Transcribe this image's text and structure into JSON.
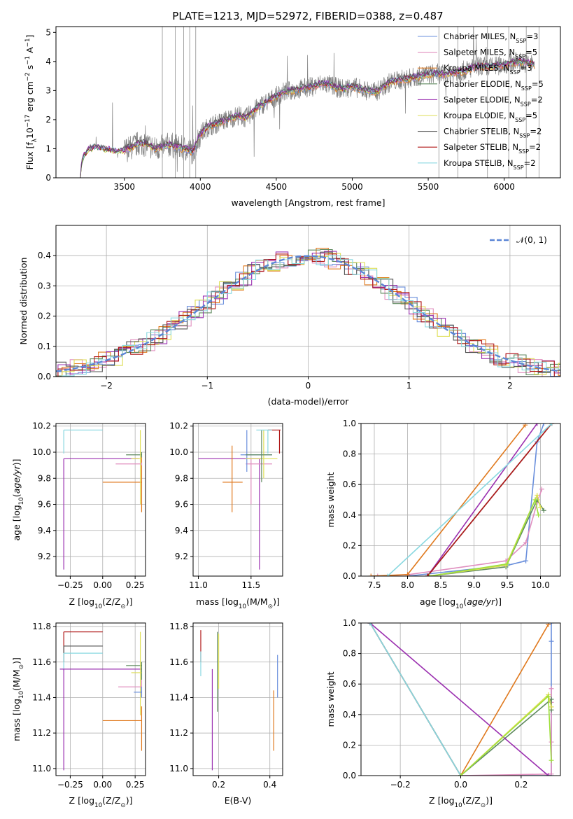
{
  "title": "PLATE=1213, MJD=52972, FIBERID=0388, z=0.487",
  "colors": {
    "Chabrier MILES": "#6a8fdc",
    "Salpeter MILES": "#e08fbf",
    "Kroupa MILES": "#e07a1f",
    "Chabrier ELODIE": "#5f8a5f",
    "Salpeter ELODIE": "#9b30b0",
    "Kroupa ELODIE": "#dede55",
    "Chabrier STELIB": "#555555",
    "Salpeter STELIB": "#b01818",
    "Kroupa STELIB": "#88d8e0",
    "data": "#808080",
    "lime": "#9fe03a"
  },
  "chart_data": [
    {
      "id": "spectrum",
      "type": "line",
      "xlabel": "wavelength [Angstrom, rest frame]",
      "ylabel_main": "Flux [f",
      "ylabel_sub": "λ",
      "ylabel_rest": "10",
      "ylabel_exp1": "−17",
      "ylabel_mid": " erg cm",
      "ylabel_exp2": "−2",
      "ylabel_mid2": " s",
      "ylabel_exp3": "−1",
      "ylabel_end": " A",
      "ylabel_exp4": "−1",
      "ylabel_close": "]",
      "xlim": [
        3050,
        6370
      ],
      "ylim": [
        0,
        5.2
      ],
      "xticks": [
        "3500",
        "4000",
        "4500",
        "5000",
        "5500",
        "6000"
      ],
      "yticks": [
        "0",
        "1",
        "2",
        "3",
        "4",
        "5"
      ],
      "legend_placement": "top-right",
      "legend": [
        {
          "label": "Chabrier MILES, N",
          "sub": "SSP",
          "tail": "=3",
          "key": "Chabrier MILES"
        },
        {
          "label": "Salpeter MILES, N",
          "sub": "SSP",
          "tail": "=5",
          "key": "Salpeter MILES"
        },
        {
          "label": "Kroupa MILES, N",
          "sub": "SSP",
          "tail": "=3",
          "key": "Kroupa MILES"
        },
        {
          "label": "Chabrier ELODIE, N",
          "sub": "SSP",
          "tail": "=5",
          "key": "Chabrier ELODIE"
        },
        {
          "label": "Salpeter ELODIE, N",
          "sub": "SSP",
          "tail": "=2",
          "key": "Salpeter ELODIE"
        },
        {
          "label": "Kroupa ELODIE, N",
          "sub": "SSP",
          "tail": "=5",
          "key": "Kroupa ELODIE"
        },
        {
          "label": "Chabrier STELIB, N",
          "sub": "SSP",
          "tail": "=2",
          "key": "Chabrier STELIB"
        },
        {
          "label": "Salpeter STELIB, N",
          "sub": "SSP",
          "tail": "=2",
          "key": "Salpeter STELIB"
        },
        {
          "label": "Kroupa STELIB, N",
          "sub": "SSP",
          "tail": "=2",
          "key": "Kroupa STELIB"
        }
      ],
      "continuum": [
        [
          3210,
          0
        ],
        [
          3220,
          0.55
        ],
        [
          3230,
          0.7
        ],
        [
          3260,
          0.95
        ],
        [
          3300,
          1.05
        ],
        [
          3350,
          1.0
        ],
        [
          3400,
          0.95
        ],
        [
          3450,
          0.9
        ],
        [
          3500,
          0.95
        ],
        [
          3550,
          1.05
        ],
        [
          3600,
          1.2
        ],
        [
          3650,
          1.15
        ],
        [
          3700,
          1.0
        ],
        [
          3750,
          1.05
        ],
        [
          3800,
          1.15
        ],
        [
          3850,
          1.05
        ],
        [
          3900,
          1.0
        ],
        [
          3950,
          0.9
        ],
        [
          4000,
          1.5
        ],
        [
          4050,
          1.75
        ],
        [
          4100,
          1.85
        ],
        [
          4150,
          1.95
        ],
        [
          4200,
          2.05
        ],
        [
          4250,
          2.15
        ],
        [
          4300,
          2.05
        ],
        [
          4350,
          2.3
        ],
        [
          4400,
          2.5
        ],
        [
          4450,
          2.65
        ],
        [
          4500,
          2.8
        ],
        [
          4550,
          2.95
        ],
        [
          4600,
          3.0
        ],
        [
          4650,
          3.05
        ],
        [
          4700,
          3.1
        ],
        [
          4750,
          3.15
        ],
        [
          4800,
          3.25
        ],
        [
          4850,
          3.2
        ],
        [
          4900,
          3.1
        ],
        [
          4950,
          3.05
        ],
        [
          5000,
          3.15
        ],
        [
          5050,
          3.05
        ],
        [
          5100,
          3.0
        ],
        [
          5150,
          2.95
        ],
        [
          5200,
          3.1
        ],
        [
          5250,
          3.3
        ],
        [
          5300,
          3.35
        ],
        [
          5350,
          3.4
        ],
        [
          5400,
          3.45
        ],
        [
          5450,
          3.5
        ],
        [
          5500,
          3.55
        ],
        [
          5550,
          3.6
        ],
        [
          5600,
          3.55
        ],
        [
          5650,
          3.6
        ],
        [
          5700,
          3.65
        ],
        [
          5750,
          3.7
        ],
        [
          5800,
          3.8
        ],
        [
          5850,
          3.85
        ],
        [
          5900,
          3.8
        ],
        [
          5950,
          3.85
        ],
        [
          6000,
          3.9
        ],
        [
          6050,
          3.95
        ],
        [
          6100,
          4.0
        ],
        [
          6150,
          3.95
        ],
        [
          6200,
          3.9
        ]
      ]
    },
    {
      "id": "histogram",
      "type": "bar",
      "xlabel": "(data-model)/error",
      "ylabel": "Normed distribution",
      "xlim": [
        -2.5,
        2.5
      ],
      "ylim": [
        0,
        0.5
      ],
      "xticks": [
        "−2",
        "−1",
        "0",
        "1",
        "2"
      ],
      "yticks": [
        "0.0",
        "0.1",
        "0.2",
        "0.3",
        "0.4"
      ],
      "legend_placement": "top-right",
      "legend_label": "𝒩(0, 1)",
      "normal_color": "#5b86d6"
    },
    {
      "id": "age_vs_Z",
      "type": "scatter",
      "xlabel": "Z [log",
      "xlabel_sub": "10",
      "xlabel_rest": "(Z/Z",
      "xlabel_sun": "⊙",
      "xlabel_close": ")]",
      "ylabel": "age  [log",
      "ylabel_sub": "10",
      "ylabel_rest": "(age/yr)]",
      "xlim": [
        -0.36,
        0.33
      ],
      "ylim": [
        9.05,
        10.22
      ],
      "xticks": [
        "−0.25",
        "0.00",
        "0.25"
      ],
      "yticks": [
        "9.2",
        "9.4",
        "9.6",
        "9.8",
        "10.0",
        "10.2"
      ]
    },
    {
      "id": "age_vs_mass",
      "type": "scatter",
      "xlabel": "mass [log",
      "xlabel_sub": "10",
      "xlabel_rest": "(M/M",
      "xlabel_sun": "⊙",
      "xlabel_close": ")]",
      "xlim": [
        10.95,
        11.8
      ],
      "ylim": [
        9.05,
        10.22
      ],
      "xticks": [
        "11.0",
        "11.5"
      ],
      "yticks": [
        "9.2",
        "9.4",
        "9.6",
        "9.8",
        "10.0",
        "10.2"
      ]
    },
    {
      "id": "massweight_vs_age",
      "type": "line",
      "xlabel": "age  [log",
      "xlabel_sub": "10",
      "xlabel_rest": "(age/yr)]",
      "ylabel": "mass weight",
      "xlim": [
        7.3,
        10.3
      ],
      "ylim": [
        0,
        1
      ],
      "xticks": [
        "7.5",
        "8.0",
        "8.5",
        "9.0",
        "9.5",
        "10.0"
      ],
      "yticks": [
        "0.0",
        "0.2",
        "0.4",
        "0.6",
        "0.8",
        "1.0"
      ]
    },
    {
      "id": "mass_vs_Z",
      "type": "scatter",
      "xlabel": "Z [log",
      "xlabel_sub": "10",
      "xlabel_rest": "(Z/Z",
      "xlabel_sun": "⊙",
      "xlabel_close": ")]",
      "ylabel": "mass [log",
      "ylabel_sub": "10",
      "ylabel_rest": "(M/M",
      "ylabel_sun": "⊙",
      "ylabel_close": ")]",
      "xlim": [
        -0.36,
        0.33
      ],
      "ylim": [
        10.96,
        11.82
      ],
      "xticks": [
        "−0.25",
        "0.00",
        "0.25"
      ],
      "yticks": [
        "11.0",
        "11.2",
        "11.4",
        "11.6",
        "11.8"
      ]
    },
    {
      "id": "mass_vs_EBV",
      "type": "scatter",
      "xlabel": "E(B-V)",
      "xlim": [
        0.1,
        0.45
      ],
      "ylim": [
        10.96,
        11.82
      ],
      "xticks": [
        "0.2",
        "0.4"
      ],
      "yticks": [
        "11.0",
        "11.2",
        "11.4",
        "11.6",
        "11.8"
      ]
    },
    {
      "id": "massweight_vs_Z",
      "type": "line",
      "xlabel": "Z [log",
      "xlabel_sub": "10",
      "xlabel_rest": "(Z/Z",
      "xlabel_sun": "⊙",
      "xlabel_close": ")]",
      "ylabel": "mass weight",
      "xlim": [
        -0.33,
        0.33
      ],
      "ylim": [
        0,
        1
      ],
      "xticks": [
        "−0.2",
        "0.0",
        "0.2"
      ],
      "yticks": [
        "0.0",
        "0.2",
        "0.4",
        "0.6",
        "0.8",
        "1.0"
      ]
    }
  ],
  "bars_age_Z": [
    {
      "key": "Kroupa STELIB",
      "x0": -0.3,
      "x1": 0.0,
      "y": 10.17,
      "ylo": 9.99,
      "yhi": 10.17,
      "vx": -0.3
    },
    {
      "key": "Salpeter ELODIE",
      "x0": -0.3,
      "x1": 0.28,
      "y": 9.95,
      "ylo": 9.1,
      "yhi": 9.95,
      "vx": -0.3
    },
    {
      "key": "Kroupa MILES",
      "x0": 0.0,
      "x1": 0.3,
      "y": 9.77,
      "ylo": 9.54,
      "yhi": 9.97,
      "vx": 0.3
    },
    {
      "key": "Chabrier ELODIE",
      "x0": 0.18,
      "x1": 0.3,
      "y": 9.98,
      "ylo": 9.96,
      "yhi": 10.0,
      "vx": 0.3
    },
    {
      "key": "Salpeter MILES",
      "x0": 0.1,
      "x1": 0.3,
      "y": 9.91,
      "ylo": 9.9,
      "yhi": 9.92,
      "vx": 0.3
    },
    {
      "key": "Kroupa ELODIE",
      "x0": 0.22,
      "x1": 0.3,
      "y": 9.95,
      "ylo": 9.6,
      "yhi": 10.17,
      "vx": 0.29
    }
  ],
  "bars_age_mass": [
    {
      "key": "Salpeter ELODIE",
      "x0": 11.0,
      "x1": 11.6,
      "y": 9.95,
      "vx": 11.58,
      "ylo": 9.1,
      "yhi": 9.95
    },
    {
      "key": "Kroupa MILES",
      "x0": 11.23,
      "x1": 11.42,
      "y": 9.77,
      "vx": 11.32,
      "ylo": 9.54,
      "yhi": 10.05
    },
    {
      "key": "Salpeter MILES",
      "x0": 11.45,
      "x1": 11.7,
      "y": 9.91,
      "vx": 11.5,
      "ylo": 9.6,
      "yhi": 9.95
    },
    {
      "key": "Chabrier MILES",
      "x0": 11.4,
      "x1": 11.7,
      "y": 9.98,
      "vx": 11.46,
      "ylo": 9.85,
      "yhi": 10.17
    },
    {
      "key": "Kroupa ELODIE",
      "x0": 11.45,
      "x1": 11.75,
      "y": 9.95,
      "vx": 11.62,
      "ylo": 9.8,
      "yhi": 10.17
    },
    {
      "key": "Chabrier ELODIE",
      "x0": 11.45,
      "x1": 11.7,
      "y": 9.98,
      "vx": 11.6,
      "ylo": 9.77,
      "yhi": 10.17
    },
    {
      "key": "Salpeter STELIB",
      "x0": 11.66,
      "x1": 11.78,
      "y": 10.17,
      "vx": 11.77,
      "ylo": 9.99,
      "yhi": 10.17
    },
    {
      "key": "Kroupa STELIB",
      "x0": 11.55,
      "x1": 11.7,
      "y": 10.17,
      "vx": 11.66,
      "ylo": 9.99,
      "yhi": 10.17
    }
  ],
  "bars_mass_Z": [
    {
      "key": "Salpeter STELIB",
      "x0": -0.3,
      "x1": 0.0,
      "y": 11.77,
      "vx": -0.3,
      "ylo": 11.6,
      "yhi": 11.77
    },
    {
      "key": "Chabrier STELIB",
      "x0": -0.3,
      "x1": 0.0,
      "y": 11.69,
      "vx": -0.3,
      "ylo": 11.6,
      "yhi": 11.69
    },
    {
      "key": "Kroupa STELIB",
      "x0": -0.3,
      "x1": 0.0,
      "y": 11.65,
      "vx": -0.3,
      "ylo": 11.55,
      "yhi": 11.65
    },
    {
      "key": "Salpeter ELODIE",
      "x0": -0.33,
      "x1": 0.3,
      "y": 11.56,
      "vx": -0.3,
      "ylo": 10.99,
      "yhi": 11.56
    },
    {
      "key": "Chabrier ELODIE",
      "x0": 0.18,
      "x1": 0.3,
      "y": 11.58,
      "vx": 0.3,
      "ylo": 11.5,
      "yhi": 11.6
    },
    {
      "key": "Kroupa ELODIE",
      "x0": 0.22,
      "x1": 0.3,
      "y": 11.54,
      "vx": 0.29,
      "ylo": 11.3,
      "yhi": 11.77
    },
    {
      "key": "Salpeter MILES",
      "x0": 0.12,
      "x1": 0.3,
      "y": 11.46,
      "vx": 0.3,
      "ylo": 11.4,
      "yhi": 11.5
    },
    {
      "key": "Chabrier MILES",
      "x0": 0.24,
      "x1": 0.3,
      "y": 11.43,
      "vx": 0.3,
      "ylo": 11.4,
      "yhi": 11.46
    },
    {
      "key": "Kroupa MILES",
      "x0": 0.0,
      "x1": 0.3,
      "y": 11.27,
      "vx": 0.3,
      "ylo": 11.1,
      "yhi": 11.35
    }
  ],
  "bars_mass_EBV": [
    {
      "key": "Salpeter STELIB",
      "vx": 0.13,
      "ylo": 11.6,
      "yhi": 11.78
    },
    {
      "key": "Kroupa STELIB",
      "vx": 0.13,
      "ylo": 11.52,
      "yhi": 11.66
    },
    {
      "key": "Salpeter ELODIE",
      "vx": 0.175,
      "ylo": 10.99,
      "yhi": 11.56
    },
    {
      "key": "Chabrier ELODIE",
      "vx": 0.195,
      "ylo": 11.32,
      "yhi": 11.77
    },
    {
      "key": "Kroupa ELODIE",
      "vx": 0.2,
      "ylo": 11.45,
      "yhi": 11.76
    },
    {
      "key": "Kroupa MILES",
      "vx": 0.415,
      "ylo": 11.1,
      "yhi": 11.44
    },
    {
      "key": "Chabrier MILES",
      "vx": 0.43,
      "ylo": 11.4,
      "yhi": 11.64
    }
  ],
  "weights_age": [
    {
      "key": "Chabrier MILES",
      "pts": [
        [
          8.0,
          0.0
        ],
        [
          9.5,
          0.07
        ],
        [
          9.78,
          0.1
        ],
        [
          9.95,
          0.88
        ],
        [
          10.05,
          1.0
        ]
      ]
    },
    {
      "key": "Salpeter MILES",
      "pts": [
        [
          7.55,
          0.0
        ],
        [
          8.02,
          0.01
        ],
        [
          9.48,
          0.1
        ],
        [
          9.78,
          0.22
        ],
        [
          9.95,
          0.48
        ],
        [
          10.02,
          0.57
        ]
      ]
    },
    {
      "key": "Kroupa MILES",
      "pts": [
        [
          7.45,
          0.0
        ],
        [
          8.0,
          0.01
        ],
        [
          9.77,
          0.99
        ]
      ]
    },
    {
      "key": "Chabrier ELODIE",
      "pts": [
        [
          8.32,
          0.0
        ],
        [
          9.48,
          0.06
        ],
        [
          9.95,
          0.5
        ],
        [
          10.05,
          0.43
        ]
      ]
    },
    {
      "key": "Salpeter ELODIE",
      "pts": [
        [
          8.3,
          0.0
        ],
        [
          9.95,
          1.0
        ]
      ]
    },
    {
      "key": "Kroupa ELODIE",
      "pts": [
        [
          8.32,
          0.0
        ],
        [
          9.48,
          0.07
        ],
        [
          9.95,
          0.53
        ],
        [
          10.0,
          0.45
        ]
      ]
    },
    {
      "key": "Chabrier STELIB",
      "pts": [
        [
          8.3,
          0.0
        ],
        [
          10.17,
          1.0
        ]
      ]
    },
    {
      "key": "Salpeter STELIB",
      "pts": [
        [
          8.3,
          0.0
        ],
        [
          10.17,
          1.0
        ]
      ]
    },
    {
      "key": "Kroupa STELIB",
      "pts": [
        [
          7.7,
          0.0
        ],
        [
          10.17,
          1.0
        ]
      ]
    },
    {
      "key": "lime",
      "pts": [
        [
          8.33,
          0.0
        ],
        [
          9.5,
          0.08
        ],
        [
          9.92,
          0.5
        ],
        [
          9.97,
          0.4
        ]
      ]
    }
  ],
  "weights_Z": [
    {
      "key": "Chabrier MILES",
      "pts": [
        [
          -0.3,
          1.0
        ],
        [
          0.0,
          0.0
        ],
        [
          0.3,
          0.0
        ],
        [
          0.3,
          0.88
        ],
        [
          0.3,
          1.0
        ]
      ]
    },
    {
      "key": "Salpeter MILES",
      "pts": [
        [
          -0.3,
          1.0
        ],
        [
          0.0,
          0.0
        ],
        [
          0.3,
          0.01
        ],
        [
          0.3,
          0.22
        ],
        [
          0.3,
          0.48
        ],
        [
          0.3,
          0.57
        ]
      ]
    },
    {
      "key": "Kroupa MILES",
      "pts": [
        [
          -0.3,
          1.0
        ],
        [
          0.0,
          0.0
        ],
        [
          0.29,
          0.99
        ]
      ]
    },
    {
      "key": "Chabrier ELODIE",
      "pts": [
        [
          0.0,
          0.0
        ],
        [
          0.3,
          0.5
        ],
        [
          0.3,
          0.43
        ]
      ]
    },
    {
      "key": "Salpeter ELODIE",
      "pts": [
        [
          -0.3,
          1.0
        ],
        [
          0.29,
          0.0
        ]
      ]
    },
    {
      "key": "Kroupa ELODIE",
      "pts": [
        [
          0.0,
          0.0
        ],
        [
          0.29,
          0.53
        ],
        [
          0.3,
          0.45
        ]
      ]
    },
    {
      "key": "Chabrier STELIB",
      "pts": [
        [
          -0.3,
          1.0
        ],
        [
          0.0,
          0.0
        ]
      ]
    },
    {
      "key": "Kroupa STELIB",
      "pts": [
        [
          -0.3,
          1.0
        ],
        [
          0.0,
          0.0
        ]
      ]
    },
    {
      "key": "lime",
      "pts": [
        [
          0.0,
          0.0
        ],
        [
          0.29,
          0.52
        ],
        [
          0.3,
          0.1
        ]
      ]
    }
  ]
}
